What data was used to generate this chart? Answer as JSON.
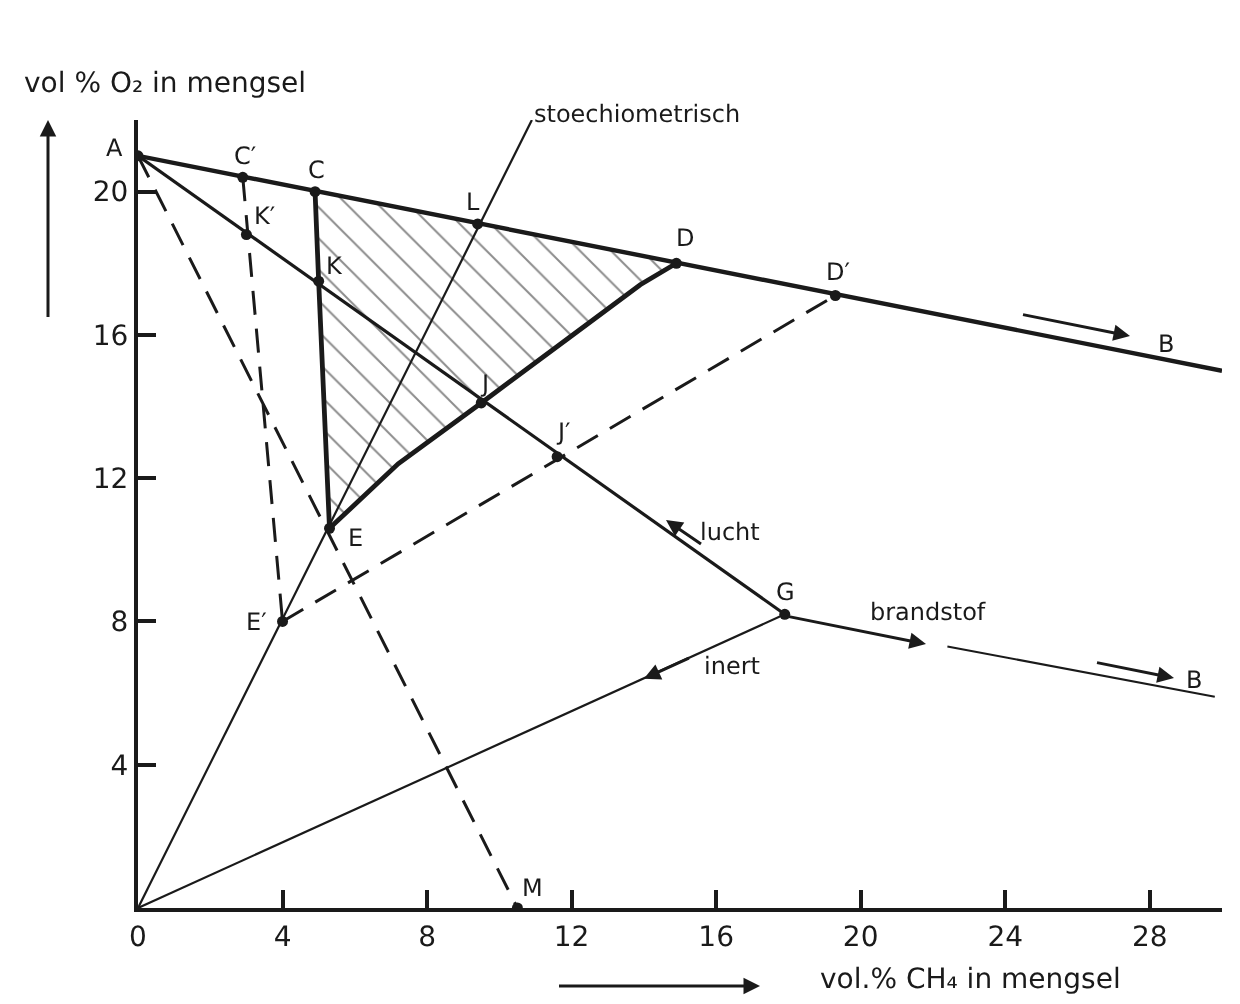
{
  "chart_data": {
    "type": "line",
    "xlabel": "vol.% CH₄ in mengsel",
    "ylabel": "vol % O₂ in mengsel",
    "xlim": [
      0,
      30
    ],
    "ylim": [
      0,
      22
    ],
    "xticks": [
      0,
      4,
      8,
      12,
      16,
      20,
      24,
      28
    ],
    "yticks": [
      4,
      8,
      12,
      16,
      20
    ],
    "series": [
      {
        "color": "#1a1a1a",
        "x": [
          0,
          30
        ],
        "values": [
          21.0,
          15.0
        ]
      },
      {
        "color": "#1a1a1a",
        "x": [
          0,
          17.9
        ],
        "values": [
          21.0,
          8.2
        ]
      },
      {
        "color": "#1a1a1a",
        "x": [
          22.4,
          29.8
        ],
        "values": [
          7.3,
          5.9
        ]
      },
      {
        "color": "#1a1a1a",
        "x": [
          0,
          17.9
        ],
        "values": [
          0,
          8.2
        ]
      },
      {
        "color": "#1a1a1a",
        "x": [
          0,
          10.9
        ],
        "values": [
          0,
          22.0
        ]
      },
      {
        "color": "#1a1a1a",
        "x": [
          4.9,
          5.0,
          5.3,
          7.2,
          9.5,
          11.9,
          13.9,
          14.9
        ],
        "values": [
          20.0,
          17.5,
          10.6,
          12.4,
          14.1,
          15.9,
          17.4,
          18.0
        ],
        "lower": [
          20.0,
          17.5,
          10.6,
          12.4,
          14.1,
          15.9,
          17.4,
          18.0
        ],
        "upper": [
          20.0,
          20.0,
          19.9,
          19.6,
          19.1,
          18.6,
          18.2,
          18.0
        ]
      },
      {
        "color": "#1a1a1a",
        "x": [
          0,
          10.5
        ],
        "values": [
          21.0,
          0
        ],
        "line_style": "dashed"
      },
      {
        "color": "#1a1a1a",
        "x": [
          2.9,
          4.0
        ],
        "values": [
          20.4,
          8.0
        ],
        "line_style": "dashed"
      },
      {
        "color": "#1a1a1a",
        "x": [
          4.0,
          19.3
        ],
        "values": [
          8.0,
          17.1
        ],
        "line_style": "dashed"
      },
      {
        "type": "scatter",
        "marker": "circle",
        "color": "#1a1a1a",
        "x": [
          0,
          2.9,
          4.9,
          9.4,
          14.9,
          19.3,
          3.0,
          5.0,
          9.5,
          11.6,
          5.3,
          4.0,
          17.9,
          10.5
        ],
        "values": [
          21.0,
          20.4,
          20.0,
          19.1,
          18.0,
          17.1,
          18.8,
          17.5,
          14.1,
          12.6,
          10.6,
          8.0,
          8.2,
          0
        ]
      }
    ],
    "annotations": [
      {
        "text": "A",
        "x": 0,
        "y": 21.0
      },
      {
        "text": "C′",
        "x": 2.9,
        "y": 20.4
      },
      {
        "text": "C",
        "x": 4.9,
        "y": 20.0
      },
      {
        "text": "L",
        "x": 9.4,
        "y": 19.1
      },
      {
        "text": "D",
        "x": 14.9,
        "y": 18.0
      },
      {
        "text": "D′",
        "x": 19.3,
        "y": 17.1
      },
      {
        "text": "K′",
        "x": 3.0,
        "y": 18.8
      },
      {
        "text": "K",
        "x": 5.0,
        "y": 17.5
      },
      {
        "text": "J",
        "x": 9.5,
        "y": 14.1
      },
      {
        "text": "J′",
        "x": 11.6,
        "y": 12.6
      },
      {
        "text": "E",
        "x": 5.3,
        "y": 10.6
      },
      {
        "text": "E′",
        "x": 4.0,
        "y": 8.0
      },
      {
        "text": "G",
        "x": 17.9,
        "y": 8.2
      },
      {
        "text": "M",
        "x": 10.5,
        "y": 0
      },
      "stoechiometrisch",
      "lucht",
      "brandstof",
      {
        "text": "inert",
        "x": 14.0,
        "y": 6.4
      },
      "B",
      "B"
    ]
  }
}
